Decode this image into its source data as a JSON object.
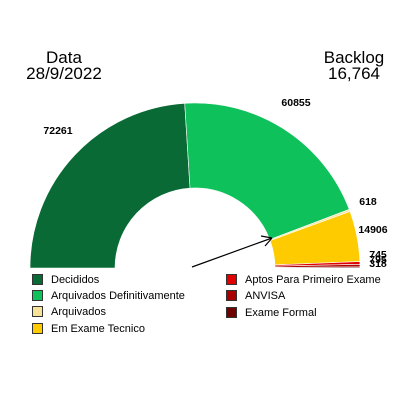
{
  "header": {
    "date_label": "Data",
    "date_value": "28/9/2022",
    "backlog_label": "Backlog",
    "backlog_value": "16,764"
  },
  "chart_data": {
    "type": "pie",
    "subtype": "half-donut",
    "slices": [
      {
        "name": "Decididos",
        "value": 72261,
        "label": "72261",
        "color": "#0a6a36"
      },
      {
        "name": "Arquivados Definitivamente",
        "value": 60855,
        "label": "60855",
        "color": "#0ec15a"
      },
      {
        "name": "Arquivados",
        "value": 618,
        "label": "618",
        "color": "#f7e29a"
      },
      {
        "name": "Em Exame Tecnico",
        "value": 14906,
        "label": "14906",
        "color": "#fecb00"
      },
      {
        "name": "Aptos Para Primeiro Exame",
        "value": 795,
        "label": "795",
        "color": "#e00000"
      },
      {
        "name": "ANVISA",
        "value": 745,
        "label": "745",
        "color": "#a80000"
      },
      {
        "name": "Exame Formal",
        "value": 318,
        "label": "318",
        "color": "#6e0000"
      }
    ],
    "legend_placement": "bottom",
    "annotation": "arrow pointing to backlog slices"
  }
}
